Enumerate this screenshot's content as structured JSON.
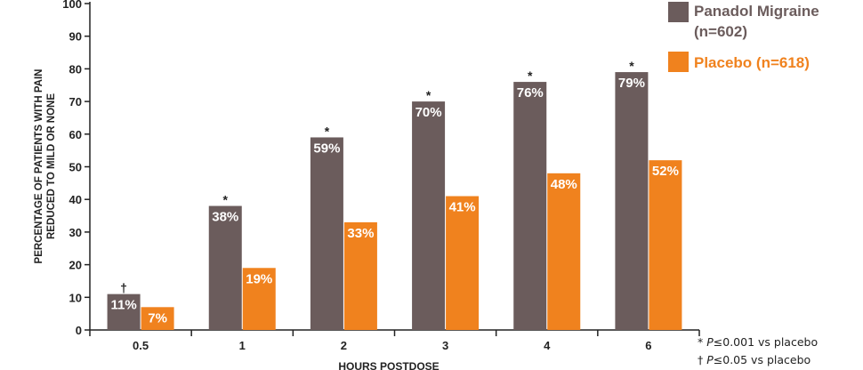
{
  "colors": {
    "panadol": "#6b5c5c",
    "placebo": "#f0821e",
    "axis": "#222222"
  },
  "legend": [
    {
      "label_line1": "Panadol Migraine",
      "label_line2": "(n=602)",
      "color": "#6b5c5c"
    },
    {
      "label_line1": "Placebo  (n=618)",
      "label_line2": "",
      "color": "#f0821e"
    }
  ],
  "footnotes": {
    "line1_symbol": "* ",
    "line1_p": "P",
    "line1_rest": "≤0.001 vs placebo",
    "line2_symbol": "† ",
    "line2_p": "P",
    "line2_rest": "≤0.05 vs placebo"
  },
  "chart_data": {
    "type": "bar",
    "title": "",
    "xlabel": "HOURS POSTDOSE",
    "ylabel_line1": "PERCENTAGE OF PATIENTS WITH PAIN",
    "ylabel_line2": "REDUCED TO MILD OR NONE",
    "ylim": [
      0,
      100
    ],
    "yticks": [
      0,
      10,
      20,
      30,
      40,
      50,
      60,
      70,
      80,
      90,
      100
    ],
    "categories": [
      "0.5",
      "1",
      "2",
      "3",
      "4",
      "6"
    ],
    "series": [
      {
        "name": "Panadol Migraine (n=602)",
        "values": [
          11,
          38,
          59,
          70,
          76,
          79
        ],
        "labels": [
          "11%",
          "38%",
          "59%",
          "70%",
          "76%",
          "79%"
        ],
        "marks": [
          "†",
          "*",
          "*",
          "*",
          "*",
          "*"
        ]
      },
      {
        "name": "Placebo (n=618)",
        "values": [
          7,
          19,
          33,
          41,
          48,
          52
        ],
        "labels": [
          "7%",
          "19%",
          "33%",
          "41%",
          "48%",
          "52%"
        ]
      }
    ],
    "grid": false,
    "legend_position": "top-right"
  }
}
